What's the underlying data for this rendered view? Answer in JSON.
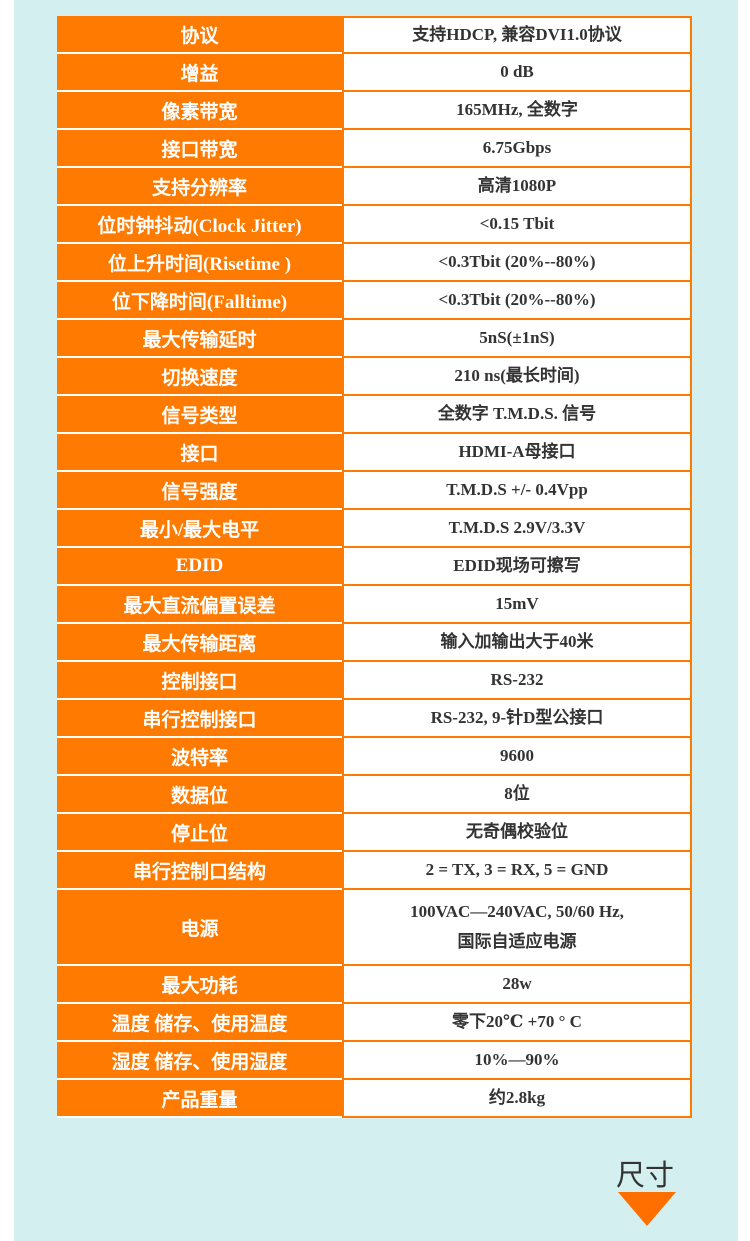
{
  "specs": [
    {
      "k": "协议",
      "v": [
        "支持HDCP, 兼容DVI1.0协议"
      ]
    },
    {
      "k": "增益",
      "v": [
        "0 dB"
      ]
    },
    {
      "k": "像素带宽",
      "v": [
        "165MHz, 全数字"
      ]
    },
    {
      "k": "接口带宽",
      "v": [
        "6.75Gbps"
      ]
    },
    {
      "k": "支持分辨率",
      "v": [
        "高清1080P"
      ]
    },
    {
      "k": "位时钟抖动(Clock Jitter)",
      "v": [
        "<0.15 Tbit"
      ]
    },
    {
      "k": "位上升时间(Risetime )",
      "v": [
        "<0.3Tbit (20%--80%)"
      ]
    },
    {
      "k": "位下降时间(Falltime)",
      "v": [
        "<0.3Tbit (20%--80%)"
      ]
    },
    {
      "k": "最大传输延时",
      "v": [
        "5nS(±1nS)"
      ]
    },
    {
      "k": "切换速度",
      "v": [
        "210 ns(最长时间)"
      ]
    },
    {
      "k": "信号类型",
      "v": [
        "全数字 T.M.D.S. 信号"
      ]
    },
    {
      "k": "接口",
      "v": [
        "HDMI-A母接口"
      ]
    },
    {
      "k": "信号强度",
      "v": [
        "T.M.D.S +/- 0.4Vpp"
      ]
    },
    {
      "k": "最小/最大电平",
      "v": [
        "T.M.D.S 2.9V/3.3V"
      ]
    },
    {
      "k": "EDID",
      "v": [
        "EDID现场可擦写"
      ]
    },
    {
      "k": "最大直流偏置误差",
      "v": [
        "15mV"
      ]
    },
    {
      "k": "最大传输距离",
      "v": [
        "输入加输出大于40米"
      ]
    },
    {
      "k": "控制接口",
      "v": [
        "RS-232"
      ]
    },
    {
      "k": "串行控制接口",
      "v": [
        "RS-232, 9-针D型公接口"
      ]
    },
    {
      "k": "波特率",
      "v": [
        "9600"
      ]
    },
    {
      "k": "数据位",
      "v": [
        "8位"
      ]
    },
    {
      "k": "停止位",
      "v": [
        "无奇偶校验位"
      ]
    },
    {
      "k": "串行控制口结构",
      "v": [
        "2 = TX, 3 = RX, 5 = GND"
      ]
    },
    {
      "k": "电源",
      "v": [
        "100VAC—240VAC, 50/60 Hz,",
        "国际自适应电源"
      ]
    },
    {
      "k": "最大功耗",
      "v": [
        "28w"
      ]
    },
    {
      "k": "温度 储存、使用温度",
      "v": [
        "零下20℃     +70 ° C"
      ]
    },
    {
      "k": "湿度 储存、使用湿度",
      "v": [
        "10%—90%"
      ]
    },
    {
      "k": "产品重量",
      "v": [
        "约2.8kg"
      ]
    }
  ],
  "section_title": "尺寸",
  "colors": {
    "accent": "#ff7a00",
    "panel": "#d3efef"
  },
  "icons": {
    "section_arrow": "triangle-down-icon"
  }
}
